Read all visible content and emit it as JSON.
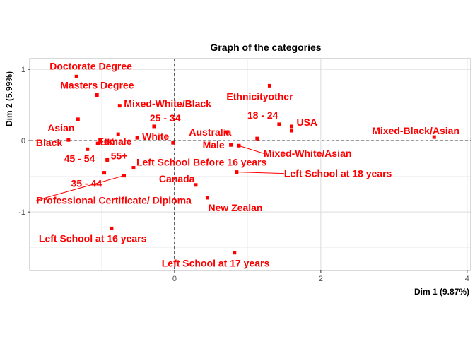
{
  "chart_data": {
    "type": "scatter",
    "title": "Graph of the categories",
    "xlabel": "Dim 1 (9.87%)",
    "ylabel": "Dim 2 (5.99%)",
    "xlim": [
      -1.98,
      4.05
    ],
    "ylim": [
      -1.82,
      1.15
    ],
    "x_ticks": [
      0,
      2,
      4
    ],
    "y_ticks": [
      -1,
      0,
      1
    ],
    "grid": true,
    "reference_lines": {
      "x": 0,
      "y": 0,
      "style": "dashed"
    },
    "point_color": "#ff0000",
    "points": [
      {
        "label": "Doctorate Degree",
        "x": -1.34,
        "y": 0.9
      },
      {
        "label": "Masters Degree",
        "x": -1.06,
        "y": 0.64
      },
      {
        "label": "Mixed-White/Black",
        "x": -0.75,
        "y": 0.49
      },
      {
        "label": "Ethnicityother",
        "x": 1.3,
        "y": 0.77
      },
      {
        "label": "25 - 34",
        "x": -0.28,
        "y": 0.2
      },
      {
        "label": "18 - 24",
        "x": 1.43,
        "y": 0.23
      },
      {
        "label": "USA",
        "x": 1.6,
        "y": 0.2
      },
      {
        "label": "Asian",
        "x": -1.32,
        "y": 0.3
      },
      {
        "label": "Female",
        "x": -0.77,
        "y": 0.09
      },
      {
        "label": "Australia",
        "x": 0.72,
        "y": 0.12
      },
      {
        "label": "Mixed-Black/Asian",
        "x": 3.55,
        "y": 0.05
      },
      {
        "label": "White",
        "x": -0.51,
        "y": 0.04
      },
      {
        "label": "UK",
        "x": -1.05,
        "y": -0.04
      },
      {
        "label": "Black",
        "x": -1.45,
        "y": 0.01
      },
      {
        "label": "Male",
        "x": 0.77,
        "y": -0.06
      },
      {
        "label": "Mixed-White/Asian",
        "x": 0.88,
        "y": -0.07
      },
      {
        "label": "45 - 54",
        "x": -1.19,
        "y": -0.12
      },
      {
        "label": "55+",
        "x": -0.92,
        "y": -0.27
      },
      {
        "label": "Left School Before 16 years",
        "x": -0.56,
        "y": -0.38
      },
      {
        "label": "35 - 44",
        "x": -0.96,
        "y": -0.45
      },
      {
        "label": "Professional Certificate/ Diploma",
        "x": -0.69,
        "y": -0.49
      },
      {
        "label": "Left School at 18 years",
        "x": 0.85,
        "y": -0.44
      },
      {
        "label": "Canada",
        "x": 0.29,
        "y": -0.62
      },
      {
        "label": "New Zealan",
        "x": 0.45,
        "y": -0.8
      },
      {
        "label": "Left School at 16 years",
        "x": -0.86,
        "y": -1.23
      },
      {
        "label": "Left School at 17 years",
        "x": 0.82,
        "y": -1.57
      },
      {
        "label": "",
        "x": 1.13,
        "y": 0.03
      },
      {
        "label": "",
        "x": 1.6,
        "y": 0.14
      },
      {
        "label": "",
        "x": -0.02,
        "y": -0.03
      }
    ]
  }
}
